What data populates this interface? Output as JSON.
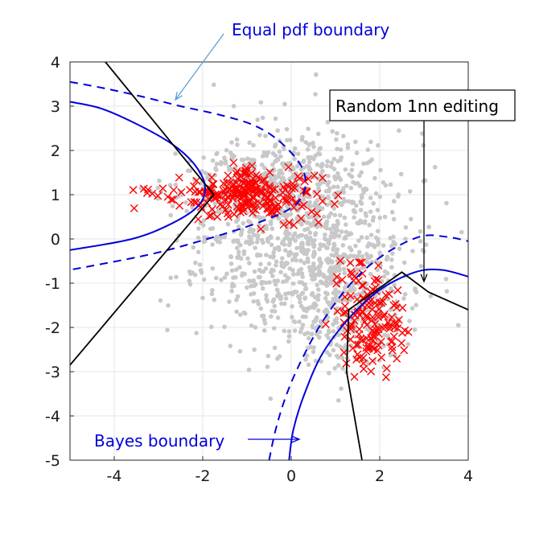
{
  "chart_data": {
    "type": "scatter",
    "xlim": [
      -5,
      4
    ],
    "ylim": [
      -5,
      4
    ],
    "xticks": [
      -4,
      -2,
      0,
      2,
      4
    ],
    "yticks": [
      4,
      3,
      2,
      1,
      0,
      -1,
      -2,
      -3,
      -4,
      -5
    ],
    "grid": true,
    "colors": {
      "background_points": "#c8c8c8",
      "edited_points": "#ff0000",
      "bayes_boundary": "#0000dd",
      "equal_pdf_boundary": "#0000dd",
      "nn_boundary": "#000000",
      "arrow_blue": "#0000dd",
      "arrow_light": "#5aa0d8"
    },
    "series": [
      {
        "marker": "dot",
        "clusters": [
          {
            "cx": 0.3,
            "cy": 0.0,
            "sx": 1.15,
            "sy": 1.2,
            "n": 1000,
            "seed": 11
          },
          {
            "cx": -0.6,
            "cy": 1.2,
            "sx": 0.95,
            "sy": 0.5,
            "n": 320,
            "seed": 23
          },
          {
            "cx": 1.3,
            "cy": -1.6,
            "sx": 0.6,
            "sy": 0.6,
            "n": 220,
            "seed": 37
          }
        ]
      },
      {
        "marker": "x",
        "clusters": [
          {
            "cx": -0.9,
            "cy": 1.0,
            "sx": 0.75,
            "sy": 0.27,
            "n": 230,
            "seed": 41
          },
          {
            "cx": -2.9,
            "cy": 1.05,
            "sx": 0.5,
            "sy": 0.15,
            "n": 14,
            "seed": 53
          },
          {
            "cx": 1.8,
            "cy": -2.0,
            "sx": 0.35,
            "sy": 0.55,
            "n": 130,
            "seed": 67
          },
          {
            "cx": 1.25,
            "cy": -0.9,
            "sx": 0.15,
            "sy": 0.3,
            "n": 12,
            "seed": 79
          }
        ]
      }
    ],
    "boundaries": {
      "bayes_left": [
        [
          -5.0,
          3.1
        ],
        [
          -4.3,
          2.95
        ],
        [
          -3.5,
          2.6
        ],
        [
          -2.7,
          2.15
        ],
        [
          -2.2,
          1.7
        ],
        [
          -1.95,
          1.2
        ],
        [
          -2.1,
          0.75
        ],
        [
          -2.7,
          0.35
        ],
        [
          -3.6,
          0.0
        ],
        [
          -5.0,
          -0.25
        ]
      ],
      "equal_pdf_left": [
        [
          -5.0,
          3.55
        ],
        [
          -4.2,
          3.4
        ],
        [
          -3.3,
          3.2
        ],
        [
          -2.5,
          3.0
        ],
        [
          -1.6,
          2.8
        ],
        [
          -0.8,
          2.55
        ],
        [
          -0.2,
          2.15
        ],
        [
          0.25,
          1.6
        ],
        [
          0.3,
          1.1
        ],
        [
          0.0,
          0.7
        ],
        [
          -0.8,
          0.35
        ],
        [
          -1.9,
          0.0
        ],
        [
          -3.2,
          -0.35
        ],
        [
          -5.0,
          -0.7
        ]
      ],
      "bayes_right": [
        [
          -0.05,
          -5.0
        ],
        [
          0.05,
          -4.3
        ],
        [
          0.3,
          -3.5
        ],
        [
          0.7,
          -2.6
        ],
        [
          1.3,
          -1.8
        ],
        [
          2.0,
          -1.15
        ],
        [
          2.8,
          -0.75
        ],
        [
          3.4,
          -0.7
        ],
        [
          4.0,
          -0.85
        ]
      ],
      "equal_pdf_right": [
        [
          -0.5,
          -5.0
        ],
        [
          -0.35,
          -4.3
        ],
        [
          -0.1,
          -3.5
        ],
        [
          0.25,
          -2.7
        ],
        [
          0.75,
          -1.8
        ],
        [
          1.4,
          -0.95
        ],
        [
          2.1,
          -0.35
        ],
        [
          2.9,
          0.05
        ],
        [
          3.5,
          0.05
        ],
        [
          4.0,
          -0.05
        ]
      ],
      "nn_upper_left": [
        [
          -4.2,
          4.0
        ],
        [
          -1.75,
          1.0
        ],
        [
          -5.0,
          -2.85
        ]
      ],
      "nn_lower_right": [
        [
          1.6,
          -5.0
        ],
        [
          1.25,
          -3.0
        ],
        [
          1.3,
          -1.6
        ],
        [
          2.5,
          -0.75
        ],
        [
          3.1,
          -1.2
        ],
        [
          4.0,
          -1.6
        ]
      ]
    },
    "annotations": {
      "equal_pdf": "Equal pdf boundary",
      "random_1nn": "Random 1nn editing",
      "bayes": "Bayes boundary"
    }
  }
}
